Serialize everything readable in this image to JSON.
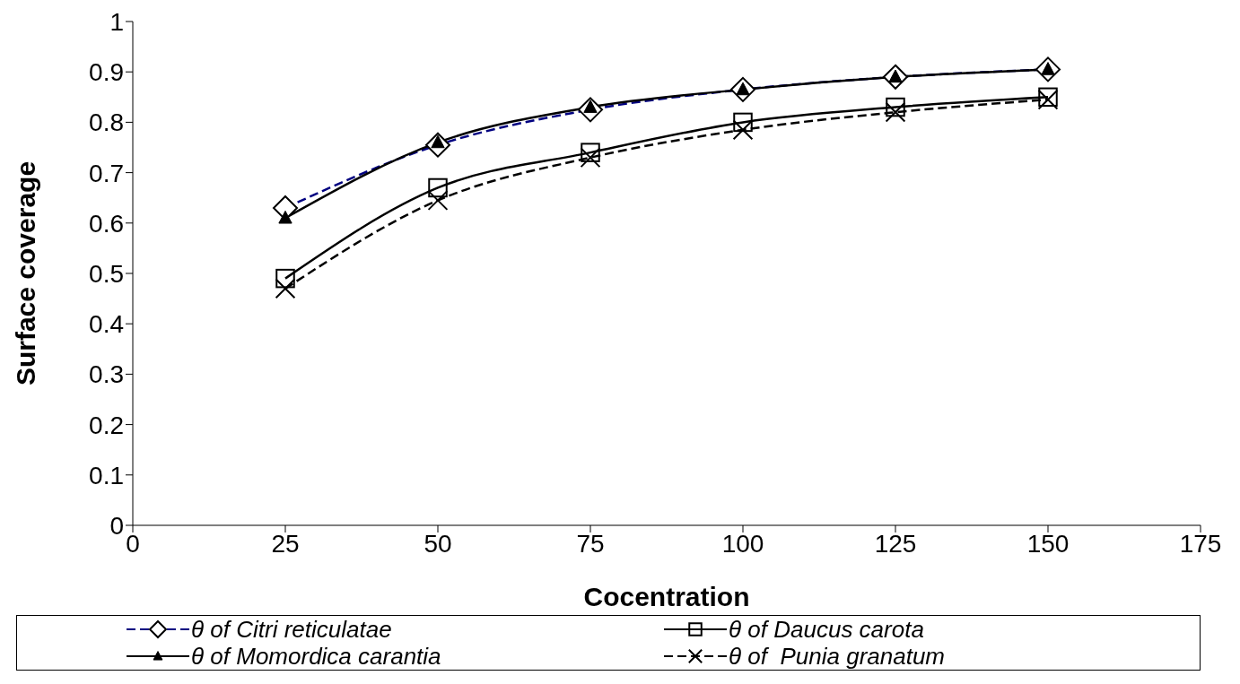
{
  "chart_data": {
    "type": "line",
    "xlabel": "Cocentration",
    "ylabel": "Surface coverage",
    "x": [
      25,
      50,
      75,
      100,
      125,
      150
    ],
    "xlim": [
      0,
      175
    ],
    "xticks": [
      0,
      25,
      50,
      75,
      100,
      125,
      150,
      175
    ],
    "ylim": [
      0,
      1
    ],
    "yticks": [
      0,
      0.1,
      0.2,
      0.3,
      0.4,
      0.5,
      0.6,
      0.7,
      0.8,
      0.9,
      1
    ],
    "grid": false,
    "legend": "bottom",
    "series": [
      {
        "name": "θ of Citri reticulatae",
        "color": "#000080",
        "values": [
          0.63,
          0.755,
          0.825,
          0.865,
          0.89,
          0.905
        ],
        "marker": "diamond",
        "line_style": "dashed"
      },
      {
        "name": "θ of Daucus carota",
        "color": "#000000",
        "values": [
          0.49,
          0.67,
          0.74,
          0.8,
          0.83,
          0.85
        ],
        "marker": "square",
        "line_style": "solid"
      },
      {
        "name": "θ of Momordica carantia",
        "color": "#000000",
        "values": [
          0.61,
          0.76,
          0.83,
          0.865,
          0.89,
          0.905
        ],
        "marker": "triangle",
        "line_style": "solid"
      },
      {
        "name": "θ of  Punia granatum",
        "color": "#000000",
        "values": [
          0.47,
          0.645,
          0.73,
          0.785,
          0.82,
          0.845
        ],
        "marker": "cross",
        "line_style": "dashed"
      }
    ]
  }
}
